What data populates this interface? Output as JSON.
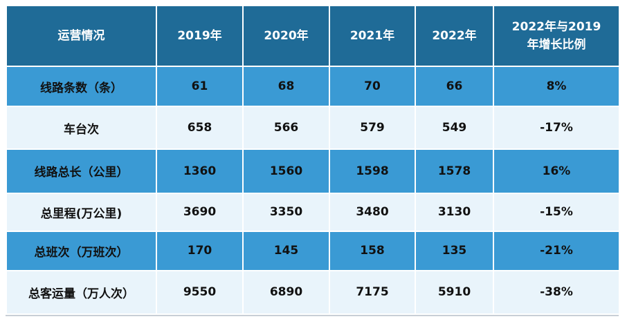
{
  "table": {
    "header": [
      "运营情况",
      "2019年",
      "2020年",
      "2021年",
      "2022年",
      [
        "2022年与2019",
        "年增长比例"
      ]
    ],
    "rows": [
      [
        "线路条数（条）",
        "61",
        "68",
        "70",
        "66",
        "8%"
      ],
      [
        "车台次",
        "658",
        "566",
        "579",
        "549",
        "-17%"
      ],
      [
        "线路总长（公里）",
        "1360",
        "1560",
        "1598",
        "1578",
        "16%"
      ],
      [
        "总里程(万公里)",
        "3690",
        "3350",
        "3480",
        "3130",
        "-15%"
      ],
      [
        "总班次（万班次）",
        "170",
        "145",
        "158",
        "135",
        "-21%"
      ],
      [
        "总客运量（万人次）",
        "9550",
        "6890",
        "7175",
        "5910",
        "-38%"
      ]
    ]
  }
}
